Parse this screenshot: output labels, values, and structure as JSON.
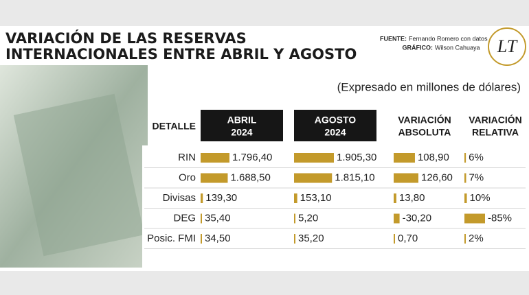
{
  "header": {
    "title": [
      "VARIACIÓN DE LAS RESERVAS",
      "INTERNACIONALES ENTRE ABRIL Y AGOSTO"
    ],
    "source_label": "FUENTE:",
    "source": "Fernando Romero con datos del BCB",
    "graphic_label": "GRÁFICO:",
    "graphic": "Wilson Cahuaya",
    "logo": "LT"
  },
  "subtitle": "(Expresado en millones de dólares)",
  "table": {
    "columns": [
      [
        "DETALLE"
      ],
      [
        "ABRIL",
        "2024"
      ],
      [
        "AGOSTO",
        "2024"
      ],
      [
        "VARIACIÓN",
        "ABSOLUTA"
      ],
      [
        "VARIACIÓN",
        "RELATIVA"
      ]
    ],
    "bar_color": "#c39a2b",
    "rows": [
      {
        "label": "RIN",
        "values": [
          1796.4,
          1905.3,
          108.9,
          6
        ],
        "value_labels": [
          "1.796,40",
          "1.905,30",
          "108,90",
          "6%"
        ]
      },
      {
        "label": "Oro",
        "values": [
          1688.5,
          1815.1,
          126.6,
          7
        ],
        "value_labels": [
          "1.688,50",
          "1.815,10",
          "126,60",
          "7%"
        ]
      },
      {
        "label": "Divisas",
        "values": [
          139.3,
          153.1,
          13.8,
          10
        ],
        "value_labels": [
          "139,30",
          "153,10",
          "13,80",
          "10%"
        ]
      },
      {
        "label": "DEG",
        "values": [
          35.4,
          5.2,
          -30.2,
          -85
        ],
        "value_labels": [
          "35,40",
          "5,20",
          "-30,20",
          "-85%"
        ]
      },
      {
        "label": "Posic. FMI",
        "values": [
          34.5,
          35.2,
          0.7,
          2
        ],
        "value_labels": [
          "34,50",
          "35,20",
          "0,70",
          "2%"
        ]
      }
    ]
  }
}
